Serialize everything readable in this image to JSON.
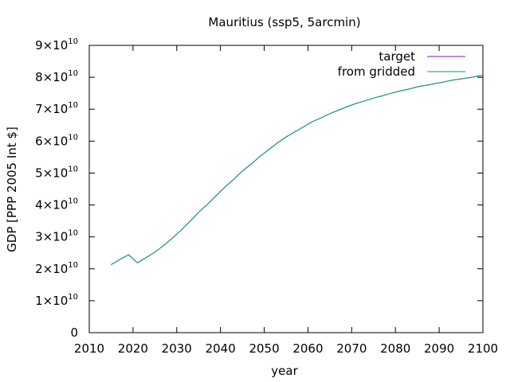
{
  "chart_data": {
    "type": "line",
    "title": "Mauritius (ssp5, 5arcmin)",
    "xlabel": "year",
    "ylabel": "GDP [PPP 2005 Int $]",
    "xlim": [
      2010,
      2100
    ],
    "ylim": [
      0,
      90000000000
    ],
    "x_ticks": [
      "2010",
      "2020",
      "2030",
      "2040",
      "2050",
      "2060",
      "2070",
      "2080",
      "2090",
      "2100"
    ],
    "y_ticks": [
      {
        "value": 0,
        "mantissa": "0",
        "exponent": ""
      },
      {
        "value": 10000000000,
        "mantissa": "1×10",
        "exponent": "10"
      },
      {
        "value": 20000000000,
        "mantissa": "2×10",
        "exponent": "10"
      },
      {
        "value": 30000000000,
        "mantissa": "3×10",
        "exponent": "10"
      },
      {
        "value": 40000000000,
        "mantissa": "4×10",
        "exponent": "10"
      },
      {
        "value": 50000000000,
        "mantissa": "5×10",
        "exponent": "10"
      },
      {
        "value": 60000000000,
        "mantissa": "6×10",
        "exponent": "10"
      },
      {
        "value": 70000000000,
        "mantissa": "7×10",
        "exponent": "10"
      },
      {
        "value": 80000000000,
        "mantissa": "8×10",
        "exponent": "10"
      },
      {
        "value": 90000000000,
        "mantissa": "9×10",
        "exponent": "10"
      }
    ],
    "grid": false,
    "legend_position": "top-right",
    "series": [
      {
        "name": "target",
        "color": "#9400d3",
        "x": [
          2015,
          2017,
          2019,
          2021,
          2023,
          2025,
          2027,
          2029,
          2031,
          2033,
          2035,
          2037,
          2039,
          2041,
          2043,
          2045,
          2047,
          2049,
          2051,
          2053,
          2055,
          2057,
          2059,
          2061,
          2063,
          2065,
          2067,
          2069,
          2071,
          2073,
          2075,
          2077,
          2079,
          2081,
          2083,
          2085,
          2087,
          2089,
          2091,
          2093,
          2095,
          2097,
          2099,
          2100
        ],
        "values": [
          21300000000,
          22900000000,
          24400000000,
          21900000000,
          23500000000,
          25200000000,
          27300000000,
          29600000000,
          32100000000,
          34800000000,
          37700000000,
          40200000000,
          42900000000,
          45600000000,
          48000000000,
          50600000000,
          52800000000,
          55200000000,
          57300000000,
          59400000000,
          61300000000,
          62900000000,
          64500000000,
          66100000000,
          67300000000,
          68600000000,
          69700000000,
          70800000000,
          71800000000,
          72600000000,
          73500000000,
          74200000000,
          75000000000,
          75700000000,
          76300000000,
          77000000000,
          77500000000,
          78000000000,
          78500000000,
          79100000000,
          79500000000,
          79900000000,
          80400000000,
          80600000000
        ]
      },
      {
        "name": "from gridded",
        "color": "#009e73",
        "x": [
          2015,
          2017,
          2019,
          2021,
          2023,
          2025,
          2027,
          2029,
          2031,
          2033,
          2035,
          2037,
          2039,
          2041,
          2043,
          2045,
          2047,
          2049,
          2051,
          2053,
          2055,
          2057,
          2059,
          2061,
          2063,
          2065,
          2067,
          2069,
          2071,
          2073,
          2075,
          2077,
          2079,
          2081,
          2083,
          2085,
          2087,
          2089,
          2091,
          2093,
          2095,
          2097,
          2099,
          2100
        ],
        "values": [
          21300000000,
          22900000000,
          24400000000,
          21900000000,
          23500000000,
          25200000000,
          27300000000,
          29600000000,
          32100000000,
          34800000000,
          37700000000,
          40200000000,
          42900000000,
          45600000000,
          48000000000,
          50600000000,
          52800000000,
          55200000000,
          57300000000,
          59400000000,
          61300000000,
          62900000000,
          64500000000,
          66100000000,
          67300000000,
          68600000000,
          69700000000,
          70800000000,
          71800000000,
          72600000000,
          73500000000,
          74200000000,
          75000000000,
          75700000000,
          76300000000,
          77000000000,
          77500000000,
          78000000000,
          78500000000,
          79100000000,
          79500000000,
          79900000000,
          80400000000,
          80600000000
        ]
      }
    ]
  }
}
